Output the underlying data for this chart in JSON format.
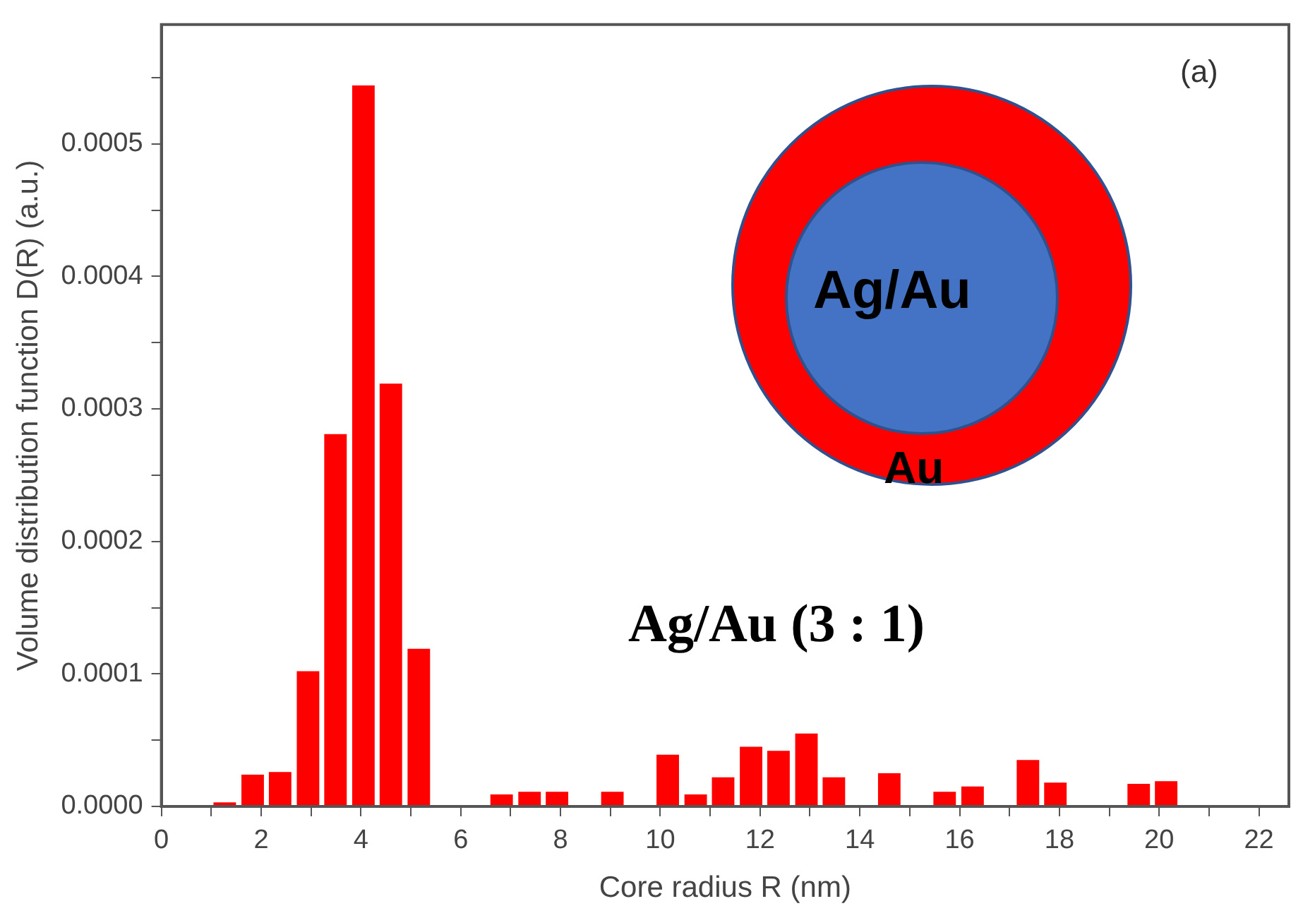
{
  "chart_data": {
    "type": "bar",
    "xlabel": "Core radius R (nm)",
    "ylabel": "Volume distribution function D(R) (a.u.)",
    "annotations": [
      "(a)",
      "Ag/Au (3 : 1)",
      "Ag/Au",
      "Au"
    ],
    "x": [
      1.27,
      1.83,
      2.38,
      2.94,
      3.49,
      4.05,
      4.6,
      5.16,
      5.71,
      6.27,
      6.82,
      7.38,
      7.93,
      8.49,
      9.04,
      9.6,
      10.15,
      10.71,
      11.26,
      11.82,
      12.37,
      12.93,
      13.48,
      14.04,
      14.59,
      15.15,
      15.7,
      16.26,
      16.81,
      17.37,
      17.92,
      18.48,
      19.03,
      19.59,
      20.14
    ],
    "values": [
      3e-06,
      2.4e-05,
      2.6e-05,
      0.000102,
      0.000281,
      0.000544,
      0.000319,
      0.000119,
      0,
      0,
      9e-06,
      1.1e-05,
      1.1e-05,
      0,
      1.1e-05,
      0,
      3.9e-05,
      9e-06,
      2.2e-05,
      4.5e-05,
      4.2e-05,
      5.5e-05,
      2.2e-05,
      0,
      2.5e-05,
      0,
      1.1e-05,
      1.5e-05,
      0,
      3.5e-05,
      1.8e-05,
      0,
      0,
      1.7e-05,
      1.9e-05
    ],
    "color": "#ff0000",
    "xlim": [
      0,
      22.6
    ],
    "xticks": [
      0,
      {
        "value": 1,
        "label": null
      },
      2,
      {
        "value": 3,
        "label": null
      },
      4,
      {
        "value": 5,
        "label": null
      },
      6,
      {
        "value": 7,
        "label": null
      },
      8,
      {
        "value": 9,
        "label": null
      },
      10,
      {
        "value": 11,
        "label": null
      },
      12,
      {
        "value": 13,
        "label": null
      },
      14,
      {
        "value": 15,
        "label": null
      },
      16,
      {
        "value": 17,
        "label": null
      },
      18,
      {
        "value": 19,
        "label": null
      },
      20,
      {
        "value": 21,
        "label": null
      },
      22
    ],
    "ylim": [
      0,
      0.00059
    ],
    "yticks": [
      {
        "value": 0,
        "label": "0.0000"
      },
      {
        "value": 5e-05,
        "label": null
      },
      {
        "value": 0.0001,
        "label": "0.0001"
      },
      {
        "value": 0.00015,
        "label": null
      },
      {
        "value": 0.0002,
        "label": "0.0002"
      },
      {
        "value": 0.00025,
        "label": null
      },
      {
        "value": 0.0003,
        "label": "0.0003"
      },
      {
        "value": 0.00035,
        "label": null
      },
      {
        "value": 0.0004,
        "label": "0.0004"
      },
      {
        "value": 0.00045,
        "label": null
      },
      {
        "value": 0.0005,
        "label": "0.0005"
      },
      {
        "value": 0.00055,
        "label": null
      }
    ],
    "grid": false,
    "legend": false
  }
}
